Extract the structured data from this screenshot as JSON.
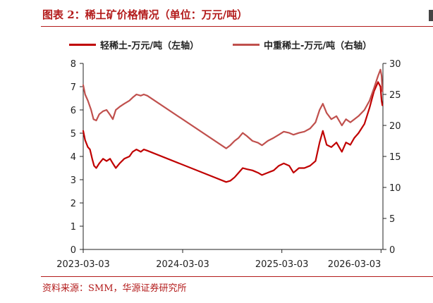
{
  "header": {
    "title": "图表 2：稀土矿价格情况（单位：万元/吨）"
  },
  "footer": {
    "source": "资料来源：SMM，华源证券研究所"
  },
  "colors": {
    "light_series": "#c00000",
    "heavy_series": "#c0504d",
    "accent": "#b31b1b"
  },
  "chart_data": {
    "type": "line",
    "title": "",
    "x_type": "date",
    "x_range": [
      "2023-03-03",
      "2026-03-10"
    ],
    "x_ticks": [
      "2023-03-03",
      "2024-03-03",
      "2025-03-03",
      "2026-03-03"
    ],
    "y_left": {
      "ylim": [
        0,
        8
      ],
      "ticks": [
        0,
        1,
        2,
        3,
        4,
        5,
        6,
        7,
        8
      ]
    },
    "y_right": {
      "ylim": [
        0,
        30
      ],
      "ticks": [
        0,
        5,
        10,
        15,
        20,
        25,
        30
      ]
    },
    "grid": false,
    "legend_position": "top",
    "series": [
      {
        "name": "轻稀土-万元/吨（左轴）",
        "axis": "left",
        "color": "#c00000",
        "points": [
          [
            "2023-03-03",
            5.1
          ],
          [
            "2023-03-10",
            4.7
          ],
          [
            "2023-03-20",
            4.4
          ],
          [
            "2023-03-28",
            4.3
          ],
          [
            "2023-04-05",
            3.9
          ],
          [
            "2023-04-12",
            3.6
          ],
          [
            "2023-04-20",
            3.5
          ],
          [
            "2023-05-01",
            3.7
          ],
          [
            "2023-05-15",
            3.9
          ],
          [
            "2023-05-28",
            3.8
          ],
          [
            "2023-06-10",
            3.9
          ],
          [
            "2023-06-20",
            3.7
          ],
          [
            "2023-07-01",
            3.5
          ],
          [
            "2023-07-15",
            3.7
          ],
          [
            "2023-08-01",
            3.9
          ],
          [
            "2023-08-20",
            4.0
          ],
          [
            "2023-09-01",
            4.2
          ],
          [
            "2023-09-15",
            4.3
          ],
          [
            "2023-10-01",
            4.2
          ],
          [
            "2023-10-12",
            4.3
          ],
          [
            "2023-10-25",
            4.25
          ],
          [
            "2024-08-10",
            2.9
          ],
          [
            "2024-08-25",
            2.95
          ],
          [
            "2024-09-10",
            3.1
          ],
          [
            "2024-09-25",
            3.3
          ],
          [
            "2024-10-10",
            3.5
          ],
          [
            "2024-10-25",
            3.45
          ],
          [
            "2024-11-15",
            3.4
          ],
          [
            "2024-12-05",
            3.3
          ],
          [
            "2024-12-20",
            3.2
          ],
          [
            "2025-01-10",
            3.3
          ],
          [
            "2025-02-01",
            3.4
          ],
          [
            "2025-02-20",
            3.6
          ],
          [
            "2025-03-10",
            3.7
          ],
          [
            "2025-03-30",
            3.6
          ],
          [
            "2025-04-15",
            3.3
          ],
          [
            "2025-05-05",
            3.5
          ],
          [
            "2025-05-25",
            3.5
          ],
          [
            "2025-06-15",
            3.6
          ],
          [
            "2025-07-05",
            3.8
          ],
          [
            "2025-07-20",
            4.6
          ],
          [
            "2025-08-01",
            5.1
          ],
          [
            "2025-08-15",
            4.5
          ],
          [
            "2025-09-01",
            4.4
          ],
          [
            "2025-09-20",
            4.6
          ],
          [
            "2025-10-10",
            4.2
          ],
          [
            "2025-10-25",
            4.6
          ],
          [
            "2025-11-10",
            4.5
          ],
          [
            "2025-11-25",
            4.8
          ],
          [
            "2025-12-10",
            5.0
          ],
          [
            "2026-01-01",
            5.4
          ],
          [
            "2026-01-20",
            6.1
          ],
          [
            "2026-02-05",
            6.8
          ],
          [
            "2026-02-20",
            7.2
          ],
          [
            "2026-03-01",
            7.0
          ],
          [
            "2026-03-05",
            6.4
          ],
          [
            "2026-03-08",
            6.2
          ]
        ]
      },
      {
        "name": "中重稀土-万元/吨（右轴）",
        "axis": "right",
        "color": "#c0504d",
        "points": [
          [
            "2023-03-03",
            26.5
          ],
          [
            "2023-03-10",
            25.0
          ],
          [
            "2023-03-20",
            24.0
          ],
          [
            "2023-04-01",
            22.5
          ],
          [
            "2023-04-10",
            21.0
          ],
          [
            "2023-04-20",
            20.8
          ],
          [
            "2023-05-01",
            21.8
          ],
          [
            "2023-05-15",
            22.3
          ],
          [
            "2023-05-28",
            22.5
          ],
          [
            "2023-06-10",
            21.7
          ],
          [
            "2023-06-20",
            21.0
          ],
          [
            "2023-07-01",
            22.5
          ],
          [
            "2023-07-15",
            23.0
          ],
          [
            "2023-08-01",
            23.5
          ],
          [
            "2023-08-20",
            24.0
          ],
          [
            "2023-09-01",
            24.5
          ],
          [
            "2023-09-15",
            25.0
          ],
          [
            "2023-10-01",
            24.8
          ],
          [
            "2023-10-12",
            25.0
          ],
          [
            "2023-10-25",
            24.8
          ],
          [
            "2024-08-10",
            16.3
          ],
          [
            "2024-08-25",
            16.8
          ],
          [
            "2024-09-10",
            17.5
          ],
          [
            "2024-09-25",
            18.0
          ],
          [
            "2024-10-10",
            18.8
          ],
          [
            "2024-10-25",
            18.3
          ],
          [
            "2024-11-15",
            17.5
          ],
          [
            "2024-12-05",
            17.2
          ],
          [
            "2024-12-20",
            16.8
          ],
          [
            "2025-01-10",
            17.5
          ],
          [
            "2025-02-01",
            18.0
          ],
          [
            "2025-02-20",
            18.5
          ],
          [
            "2025-03-10",
            19.0
          ],
          [
            "2025-03-30",
            18.8
          ],
          [
            "2025-04-15",
            18.5
          ],
          [
            "2025-05-05",
            18.8
          ],
          [
            "2025-05-25",
            19.0
          ],
          [
            "2025-06-15",
            19.5
          ],
          [
            "2025-07-05",
            20.5
          ],
          [
            "2025-07-20",
            22.5
          ],
          [
            "2025-08-01",
            23.5
          ],
          [
            "2025-08-15",
            22.0
          ],
          [
            "2025-09-01",
            21.0
          ],
          [
            "2025-09-20",
            21.5
          ],
          [
            "2025-10-10",
            20.0
          ],
          [
            "2025-10-25",
            21.0
          ],
          [
            "2025-11-10",
            20.5
          ],
          [
            "2025-11-25",
            21.0
          ],
          [
            "2025-12-10",
            21.5
          ],
          [
            "2026-01-01",
            22.5
          ],
          [
            "2026-01-20",
            24.0
          ],
          [
            "2026-02-05",
            26.0
          ],
          [
            "2026-02-20",
            28.0
          ],
          [
            "2026-03-01",
            29.0
          ],
          [
            "2026-03-05",
            28.0
          ],
          [
            "2026-03-08",
            25.5
          ]
        ]
      }
    ]
  }
}
